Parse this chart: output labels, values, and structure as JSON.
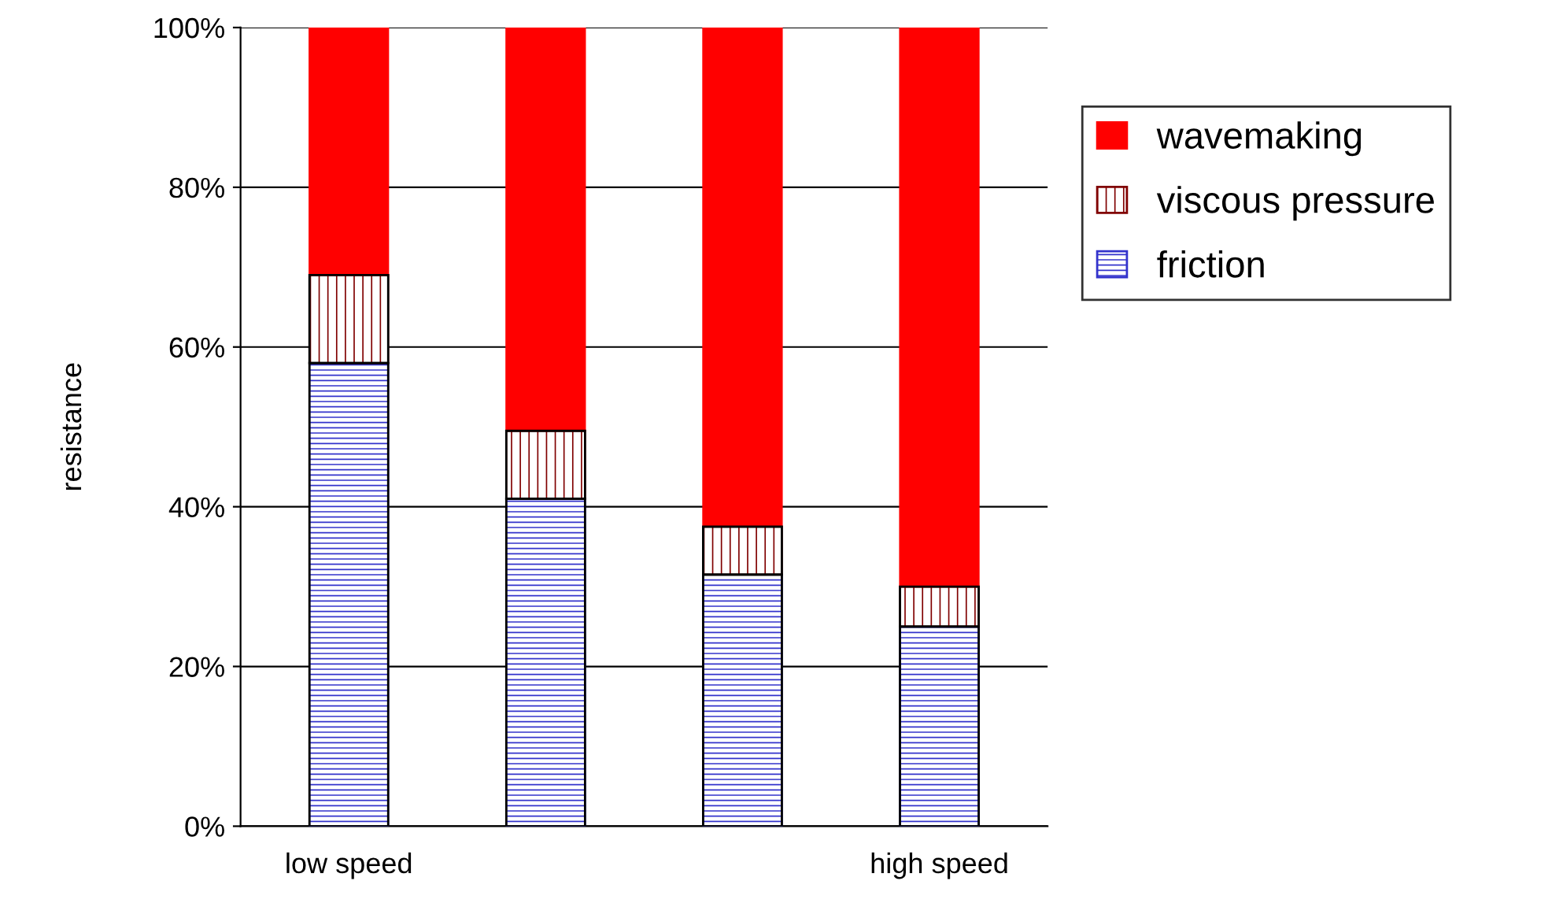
{
  "chart_data": {
    "type": "bar",
    "stacked": true,
    "ylabel": "resistance",
    "categories": [
      "low speed",
      null,
      null,
      "high speed"
    ],
    "series": [
      {
        "name": "friction",
        "color": "#3333cc",
        "values": [
          58,
          41,
          31.5,
          25
        ]
      },
      {
        "name": "viscous pressure",
        "color": "#800000",
        "values": [
          11,
          8.5,
          6,
          5
        ]
      },
      {
        "name": "wavemaking",
        "color": "#ff0000",
        "values": [
          31,
          50.5,
          62.5,
          70
        ]
      }
    ],
    "ylim": [
      0,
      100
    ],
    "yticks": [
      {
        "value": 0,
        "label": "0%"
      },
      {
        "value": 20,
        "label": "20%"
      },
      {
        "value": 40,
        "label": "40%"
      },
      {
        "value": 60,
        "label": "60%"
      },
      {
        "value": 80,
        "label": "80%"
      },
      {
        "value": 100,
        "label": "100%"
      }
    ],
    "grid": "y",
    "legend": "right"
  }
}
